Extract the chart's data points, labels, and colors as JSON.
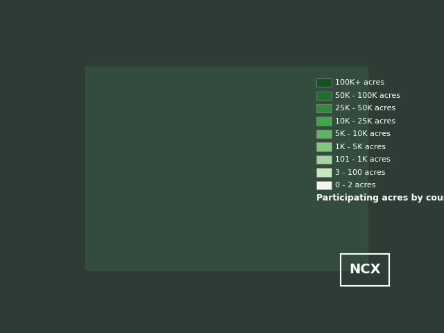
{
  "background_color": "#2d3d35",
  "title": "",
  "legend_title": "Participating acres by county",
  "legend_labels": [
    "0 - 2 acres",
    "3 - 100 acres",
    "101 - 1K acres",
    "1K - 5K acres",
    "5K - 10K acres",
    "10K - 25K acres",
    "25K - 50K acres",
    "50K - 100K acres",
    "100K+ acres"
  ],
  "legend_colors": [
    "#f5f5f0",
    "#c8e6c0",
    "#a5d6a0",
    "#81c880",
    "#5cb860",
    "#3da84a",
    "#2e8b40",
    "#1e6e30",
    "#145220"
  ],
  "map_base_color": "#3a5c47",
  "water_color": "#5bc8dc",
  "ncx_logo_color": "#ffffff",
  "colormap_name": "Greens",
  "font_color": "#ffffff",
  "font_size_legend_title": 9,
  "font_size_legend_labels": 8
}
